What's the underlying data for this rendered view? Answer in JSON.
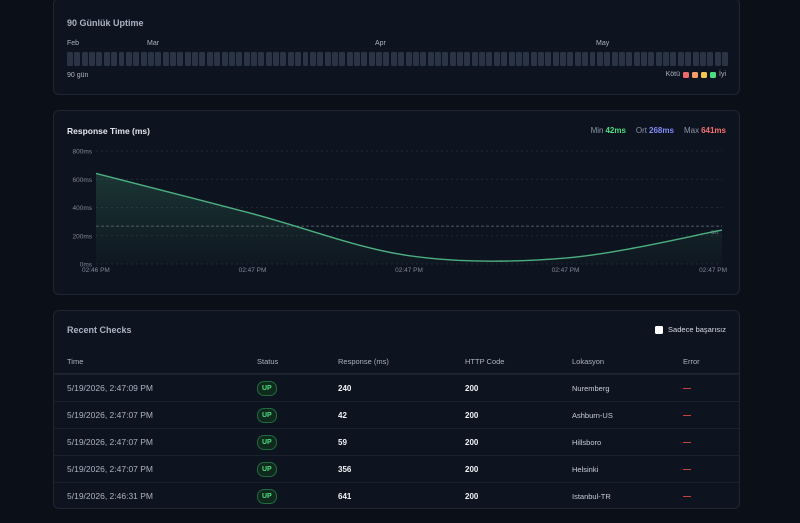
{
  "uptime": {
    "title": "90 Günlük Uptime",
    "months": [
      "Feb",
      "Mar",
      "Apr",
      "May"
    ],
    "days_label": "90 gün",
    "legend_bad": "Kötü",
    "legend_good": "İyi",
    "legend_colors": [
      "#ef6a6a",
      "#f59e6a",
      "#f5c451",
      "#4ade80"
    ],
    "bar_color": "#2b3444"
  },
  "response_time": {
    "title": "Response Time (ms)",
    "stats": [
      {
        "label": "Min",
        "value": "42ms",
        "color": "#4ade80"
      },
      {
        "label": "Ort",
        "value": "268ms",
        "color": "#818cf8"
      },
      {
        "label": "Max",
        "value": "641ms",
        "color": "#f87171"
      }
    ],
    "avg_label": "ort"
  },
  "chart_data": {
    "type": "area",
    "y_ticks": [
      "800ms",
      "600ms",
      "400ms",
      "200ms",
      "0ms"
    ],
    "ylim": [
      0,
      800
    ],
    "x_ticks": [
      "02:46 PM",
      "02:47 PM",
      "02:47 PM",
      "02:47 PM",
      "02:47 PM"
    ],
    "series": [
      {
        "values": [
          641,
          356,
          59,
          42,
          240
        ]
      }
    ],
    "average": 268,
    "line_color": "#4caf80"
  },
  "checks": {
    "title": "Recent Checks",
    "filter_label": "Sadece başarısız",
    "columns": [
      "Time",
      "Status",
      "Response (ms)",
      "HTTP Code",
      "Lokasyon",
      "Error"
    ],
    "rows": [
      {
        "time": "5/19/2026, 2:47:09 PM",
        "status": "UP",
        "response": "240",
        "code": "200",
        "location": "Nuremberg",
        "error": "—"
      },
      {
        "time": "5/19/2026, 2:47:07 PM",
        "status": "UP",
        "response": "42",
        "code": "200",
        "location": "Ashburn-US",
        "error": "—"
      },
      {
        "time": "5/19/2026, 2:47:07 PM",
        "status": "UP",
        "response": "59",
        "code": "200",
        "location": "Hillsboro",
        "error": "—"
      },
      {
        "time": "5/19/2026, 2:47:07 PM",
        "status": "UP",
        "response": "356",
        "code": "200",
        "location": "Helsinki",
        "error": "—"
      },
      {
        "time": "5/19/2026, 2:46:31 PM",
        "status": "UP",
        "response": "641",
        "code": "200",
        "location": "Istanbul-TR",
        "error": "—"
      }
    ]
  }
}
